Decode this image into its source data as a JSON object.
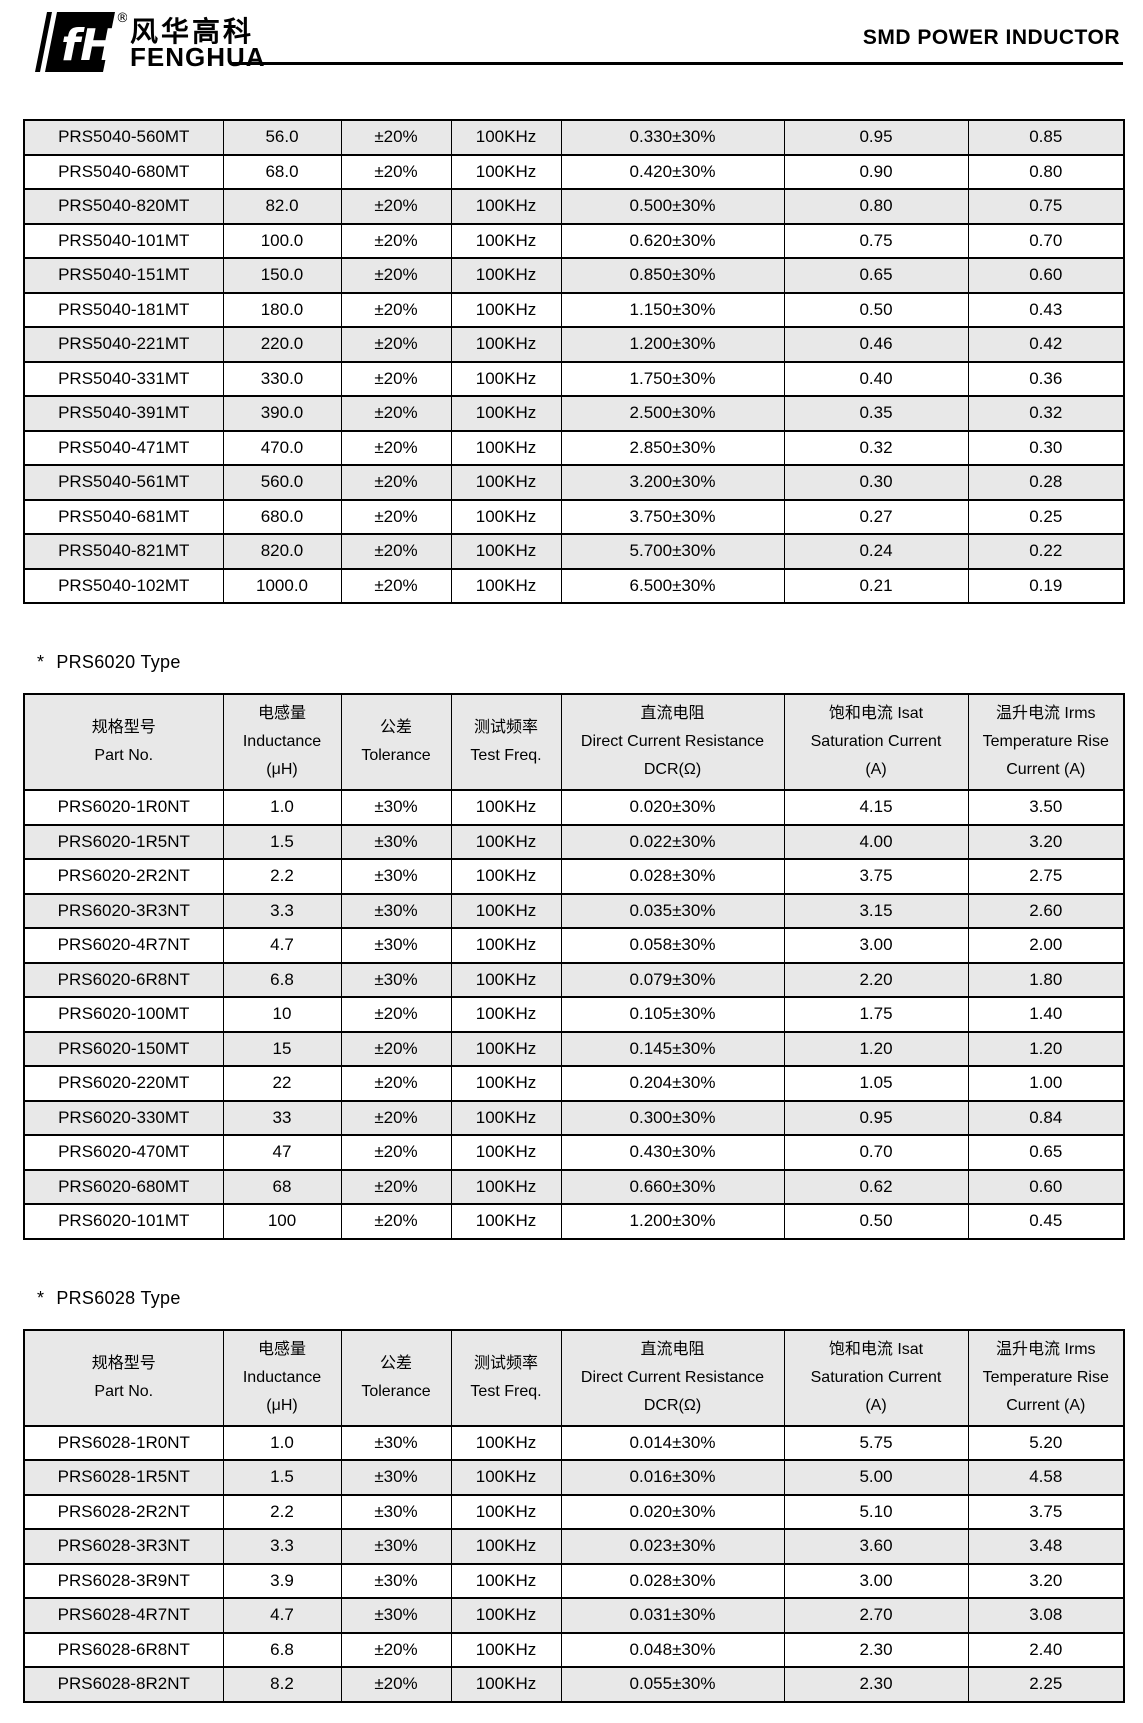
{
  "header": {
    "logo": {
      "mark_letters": "fH",
      "registered": "®",
      "chinese": "风华高科",
      "english": "FENGHUA"
    },
    "title": "SMD POWER INDUCTOR"
  },
  "table_columns": [
    {
      "lines": [
        "规格型号",
        "Part No."
      ]
    },
    {
      "lines": [
        "电感量",
        "Inductance",
        "(μH)"
      ]
    },
    {
      "lines": [
        "公差",
        "Tolerance"
      ]
    },
    {
      "lines": [
        "测试频率",
        "Test Freq."
      ]
    },
    {
      "lines": [
        "直流电阻",
        "Direct Current Resistance",
        "DCR(Ω)"
      ]
    },
    {
      "lines": [
        "饱和电流  Isat",
        "Saturation Current",
        "(A)"
      ]
    },
    {
      "lines": [
        "温升电流  Irms",
        "Temperature Rise",
        "Current (A)"
      ]
    }
  ],
  "sections": [
    {
      "id": "prs5040-continued",
      "heading_star": "",
      "heading_text": "",
      "show_header": false,
      "shaded_rows": "even",
      "rows": [
        [
          "PRS5040-560MT",
          "56.0",
          "±20%",
          "100KHz",
          "0.330±30%",
          "0.95",
          "0.85"
        ],
        [
          "PRS5040-680MT",
          "68.0",
          "±20%",
          "100KHz",
          "0.420±30%",
          "0.90",
          "0.80"
        ],
        [
          "PRS5040-820MT",
          "82.0",
          "±20%",
          "100KHz",
          "0.500±30%",
          "0.80",
          "0.75"
        ],
        [
          "PRS5040-101MT",
          "100.0",
          "±20%",
          "100KHz",
          "0.620±30%",
          "0.75",
          "0.70"
        ],
        [
          "PRS5040-151MT",
          "150.0",
          "±20%",
          "100KHz",
          "0.850±30%",
          "0.65",
          "0.60"
        ],
        [
          "PRS5040-181MT",
          "180.0",
          "±20%",
          "100KHz",
          "1.150±30%",
          "0.50",
          "0.43"
        ],
        [
          "PRS5040-221MT",
          "220.0",
          "±20%",
          "100KHz",
          "1.200±30%",
          "0.46",
          "0.42"
        ],
        [
          "PRS5040-331MT",
          "330.0",
          "±20%",
          "100KHz",
          "1.750±30%",
          "0.40",
          "0.36"
        ],
        [
          "PRS5040-391MT",
          "390.0",
          "±20%",
          "100KHz",
          "2.500±30%",
          "0.35",
          "0.32"
        ],
        [
          "PRS5040-471MT",
          "470.0",
          "±20%",
          "100KHz",
          "2.850±30%",
          "0.32",
          "0.30"
        ],
        [
          "PRS5040-561MT",
          "560.0",
          "±20%",
          "100KHz",
          "3.200±30%",
          "0.30",
          "0.28"
        ],
        [
          "PRS5040-681MT",
          "680.0",
          "±20%",
          "100KHz",
          "3.750±30%",
          "0.27",
          "0.25"
        ],
        [
          "PRS5040-821MT",
          "820.0",
          "±20%",
          "100KHz",
          "5.700±30%",
          "0.24",
          "0.22"
        ],
        [
          "PRS5040-102MT",
          "1000.0",
          "±20%",
          "100KHz",
          "6.500±30%",
          "0.21",
          "0.19"
        ]
      ]
    },
    {
      "id": "prs6020",
      "heading_star": "*",
      "heading_text": "PRS6020 Type",
      "show_header": true,
      "shaded_rows": "odd",
      "rows": [
        [
          "PRS6020-1R0NT",
          "1.0",
          "±30%",
          "100KHz",
          "0.020±30%",
          "4.15",
          "3.50"
        ],
        [
          "PRS6020-1R5NT",
          "1.5",
          "±30%",
          "100KHz",
          "0.022±30%",
          "4.00",
          "3.20"
        ],
        [
          "PRS6020-2R2NT",
          "2.2",
          "±30%",
          "100KHz",
          "0.028±30%",
          "3.75",
          "2.75"
        ],
        [
          "PRS6020-3R3NT",
          "3.3",
          "±30%",
          "100KHz",
          "0.035±30%",
          "3.15",
          "2.60"
        ],
        [
          "PRS6020-4R7NT",
          "4.7",
          "±30%",
          "100KHz",
          "0.058±30%",
          "3.00",
          "2.00"
        ],
        [
          "PRS6020-6R8NT",
          "6.8",
          "±30%",
          "100KHz",
          "0.079±30%",
          "2.20",
          "1.80"
        ],
        [
          "PRS6020-100MT",
          "10",
          "±20%",
          "100KHz",
          "0.105±30%",
          "1.75",
          "1.40"
        ],
        [
          "PRS6020-150MT",
          "15",
          "±20%",
          "100KHz",
          "0.145±30%",
          "1.20",
          "1.20"
        ],
        [
          "PRS6020-220MT",
          "22",
          "±20%",
          "100KHz",
          "0.204±30%",
          "1.05",
          "1.00"
        ],
        [
          "PRS6020-330MT",
          "33",
          "±20%",
          "100KHz",
          "0.300±30%",
          "0.95",
          "0.84"
        ],
        [
          "PRS6020-470MT",
          "47",
          "±20%",
          "100KHz",
          "0.430±30%",
          "0.70",
          "0.65"
        ],
        [
          "PRS6020-680MT",
          "68",
          "±20%",
          "100KHz",
          "0.660±30%",
          "0.62",
          "0.60"
        ],
        [
          "PRS6020-101MT",
          "100",
          "±20%",
          "100KHz",
          "1.200±30%",
          "0.50",
          "0.45"
        ]
      ]
    },
    {
      "id": "prs6028",
      "heading_star": "*",
      "heading_text": "PRS6028 Type",
      "show_header": true,
      "shaded_rows": "odd",
      "rows": [
        [
          "PRS6028-1R0NT",
          "1.0",
          "±30%",
          "100KHz",
          "0.014±30%",
          "5.75",
          "5.20"
        ],
        [
          "PRS6028-1R5NT",
          "1.5",
          "±30%",
          "100KHz",
          "0.016±30%",
          "5.00",
          "4.58"
        ],
        [
          "PRS6028-2R2NT",
          "2.2",
          "±30%",
          "100KHz",
          "0.020±30%",
          "5.10",
          "3.75"
        ],
        [
          "PRS6028-3R3NT",
          "3.3",
          "±30%",
          "100KHz",
          "0.023±30%",
          "3.60",
          "3.48"
        ],
        [
          "PRS6028-3R9NT",
          "3.9",
          "±30%",
          "100KHz",
          "0.028±30%",
          "3.00",
          "3.20"
        ],
        [
          "PRS6028-4R7NT",
          "4.7",
          "±30%",
          "100KHz",
          "0.031±30%",
          "2.70",
          "3.08"
        ],
        [
          "PRS6028-6R8NT",
          "6.8",
          "±20%",
          "100KHz",
          "0.048±30%",
          "2.30",
          "2.40"
        ],
        [
          "PRS6028-8R2NT",
          "8.2",
          "±20%",
          "100KHz",
          "0.055±30%",
          "2.30",
          "2.25"
        ]
      ]
    }
  ],
  "colors": {
    "row_shade": "#e8e8e8",
    "header_shade": "#e8e8e8",
    "border": "#000000",
    "text": "#000000"
  }
}
